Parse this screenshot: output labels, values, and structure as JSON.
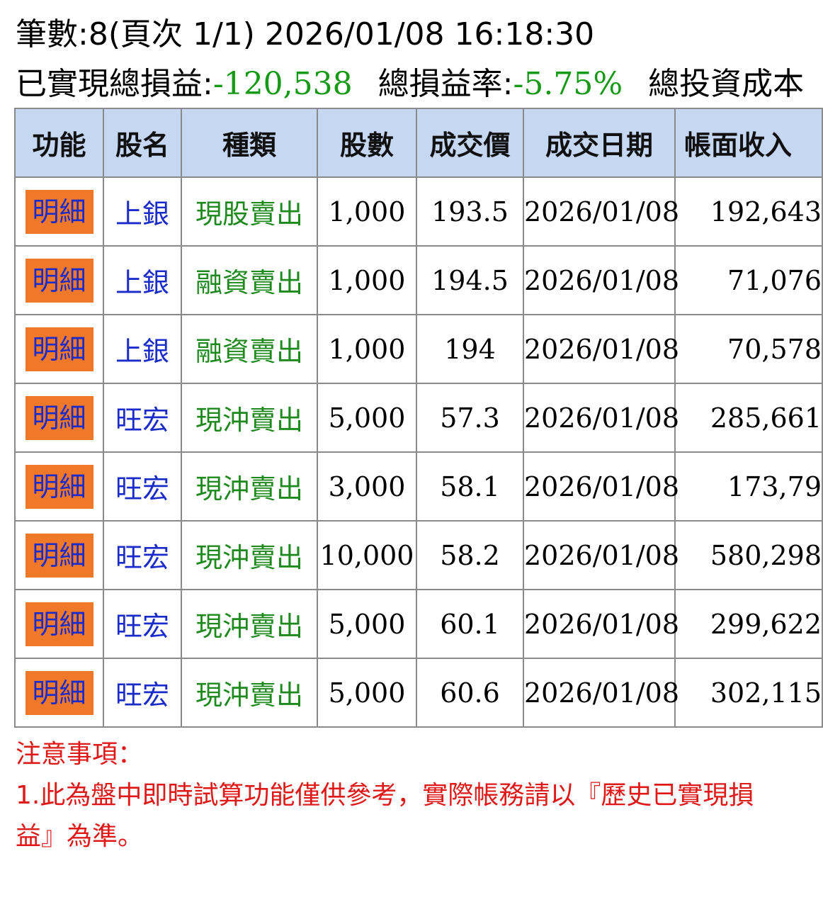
{
  "header": {
    "count_line": "筆數:8(頁次 1/1) 2026/01/08 16:18:30",
    "realized_label": "已實現總損益:",
    "realized_value": "-120,538",
    "rate_label": "總損益率:",
    "rate_value": "-5.75%",
    "cost_label": "總投資成本"
  },
  "colors": {
    "header_bg": "#c6d7f2",
    "detail_button_bg": "#f07829",
    "stock_name": "#1a2bcc",
    "trade_type": "#1e8a1e",
    "negative": "#159a15",
    "notes": "#e01818"
  },
  "table": {
    "columns": [
      "功能",
      "股名",
      "種類",
      "股數",
      "成交價",
      "成交日期",
      "帳面收入"
    ],
    "rows": [
      {
        "action": "明細",
        "name": "上銀",
        "type": "現股賣出",
        "shares": "1,000",
        "price": "193.5",
        "date": "2026/01/08",
        "book": "192,643"
      },
      {
        "action": "明細",
        "name": "上銀",
        "type": "融資賣出",
        "shares": "1,000",
        "price": "194.5",
        "date": "2026/01/08",
        "book": "71,076"
      },
      {
        "action": "明細",
        "name": "上銀",
        "type": "融資賣出",
        "shares": "1,000",
        "price": "194",
        "date": "2026/01/08",
        "book": "70,578"
      },
      {
        "action": "明細",
        "name": "旺宏",
        "type": "現沖賣出",
        "shares": "5,000",
        "price": "57.3",
        "date": "2026/01/08",
        "book": "285,661"
      },
      {
        "action": "明細",
        "name": "旺宏",
        "type": "現沖賣出",
        "shares": "3,000",
        "price": "58.1",
        "date": "2026/01/08",
        "book": "173,79"
      },
      {
        "action": "明細",
        "name": "旺宏",
        "type": "現沖賣出",
        "shares": "10,000",
        "price": "58.2",
        "date": "2026/01/08",
        "book": "580,298"
      },
      {
        "action": "明細",
        "name": "旺宏",
        "type": "現沖賣出",
        "shares": "5,000",
        "price": "60.1",
        "date": "2026/01/08",
        "book": "299,622"
      },
      {
        "action": "明細",
        "name": "旺宏",
        "type": "現沖賣出",
        "shares": "5,000",
        "price": "60.6",
        "date": "2026/01/08",
        "book": "302,115"
      }
    ]
  },
  "notes": {
    "title": "注意事項：",
    "body": "1.此為盤中即時試算功能僅供參考，實際帳務請以『歷史已實現損益』為準。"
  }
}
